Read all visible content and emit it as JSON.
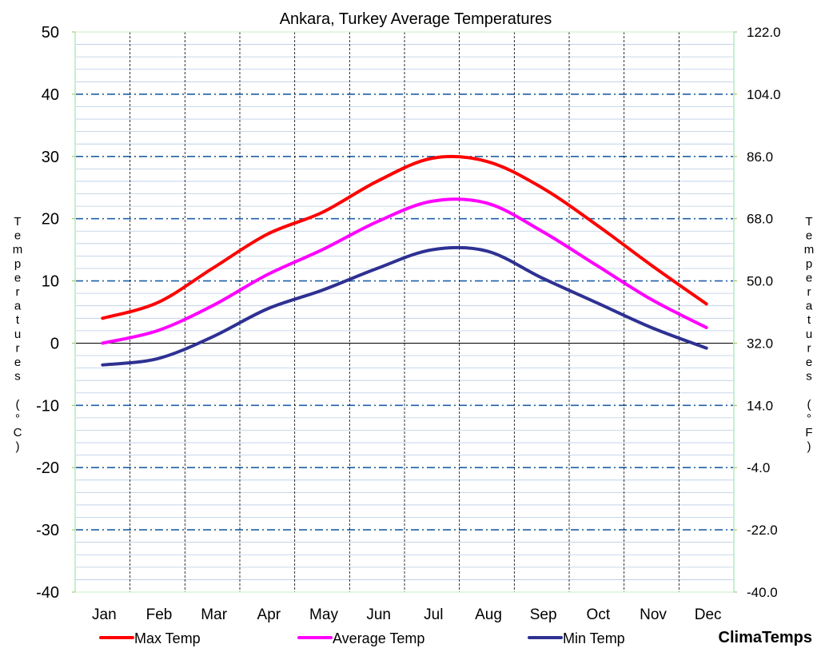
{
  "chart_data": {
    "type": "line",
    "title": "Ankara, Turkey Average Temperatures",
    "ylabel_left": "Temperatures (°C)",
    "ylabel_right": "Temperatures (°F)",
    "categories": [
      "Jan",
      "Feb",
      "Mar",
      "Apr",
      "May",
      "Jun",
      "Jul",
      "Aug",
      "Sep",
      "Oct",
      "Nov",
      "Dec"
    ],
    "ylim": [
      -40,
      50
    ],
    "left_ticks": [
      "50",
      "40",
      "30",
      "20",
      "10",
      "0",
      "-10",
      "-20",
      "-30",
      "-40"
    ],
    "right_ticks": [
      "122.0",
      "104.0",
      "86.0",
      "68.0",
      "50.0",
      "32.0",
      "14.0",
      "-4.0",
      "-22.0",
      "-40.0"
    ],
    "series": [
      {
        "name": "Max Temp",
        "color": "#ff0000",
        "values": [
          4.0,
          6.5,
          12.0,
          17.5,
          21.0,
          26.0,
          29.7,
          29.2,
          25.0,
          19.0,
          12.5,
          6.3
        ]
      },
      {
        "name": "Average Temp",
        "color": "#ff00ff",
        "values": [
          0.0,
          2.0,
          6.0,
          11.0,
          15.0,
          19.5,
          22.8,
          22.5,
          18.0,
          12.5,
          7.0,
          2.5
        ]
      },
      {
        "name": "Min Temp",
        "color": "#2e3192",
        "values": [
          -3.5,
          -2.5,
          1.0,
          5.5,
          8.5,
          12.0,
          15.0,
          14.8,
          10.5,
          6.5,
          2.5,
          -0.8
        ]
      }
    ],
    "grid": true
  },
  "brand": {
    "text": "ClimaTemps",
    "color": "#7030a0"
  }
}
